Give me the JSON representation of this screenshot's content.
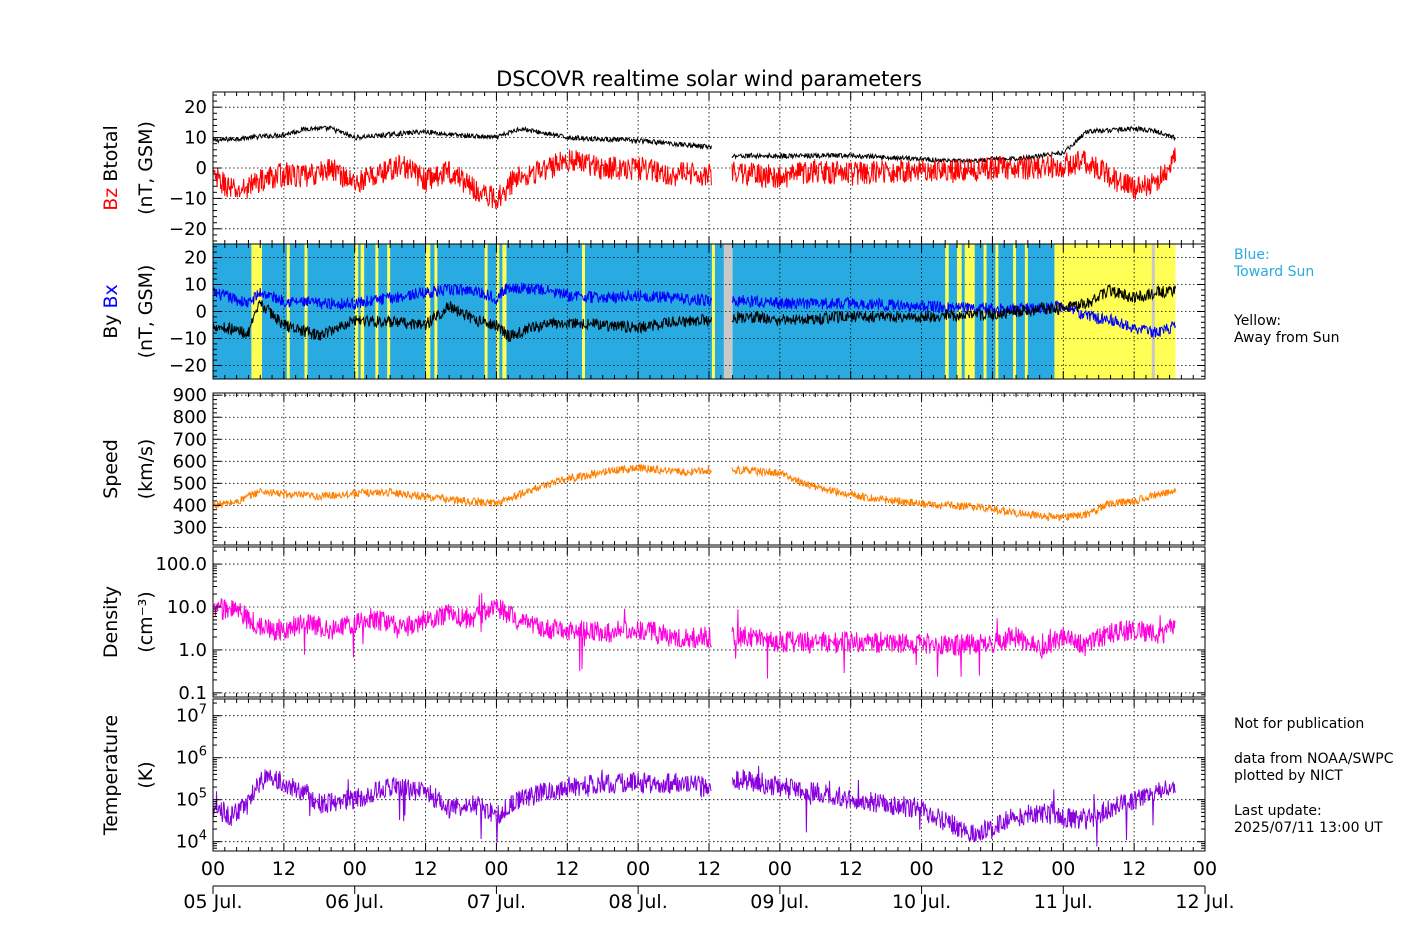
{
  "chart_data": {
    "type": "line",
    "title": "DSCOVR realtime solar wind parameters",
    "x_axis": {
      "range": [
        "2025-07-05 00:00",
        "2025-07-12 00:00"
      ],
      "hour_ticks": [
        "00",
        "12",
        "00",
        "12",
        "00",
        "12",
        "00",
        "12",
        "00",
        "12",
        "00",
        "12",
        "00",
        "12",
        "00"
      ],
      "day_labels": [
        "05 Jul.",
        "06 Jul.",
        "07 Jul.",
        "08 Jul.",
        "09 Jul.",
        "10 Jul.",
        "11 Jul.",
        "12 Jul."
      ]
    },
    "panels": [
      {
        "id": "btotal_bz",
        "ylabel_lines": [
          "Btotal",
          "(nT, GSM)"
        ],
        "ylabel_colored": "Bz",
        "ylim": [
          -25,
          25
        ],
        "yticks": [
          20,
          10,
          0,
          -10,
          -20
        ],
        "ytick_labels": [
          "20",
          "10",
          "0",
          "−10",
          "−20"
        ],
        "grid": true,
        "series": [
          {
            "name": "Btotal",
            "color": "#000000",
            "x_hours": [
              0,
              6,
              12,
              16,
              20,
              24,
              30,
              36,
              40,
              48,
              52,
              60,
              72,
              84,
              86,
              88,
              96,
              108,
              120,
              128,
              132,
              136,
              140,
              144,
              148,
              156,
              160,
              163
            ],
            "y": [
              9,
              10,
              11,
              13,
              13,
              10,
              11,
              12,
              11,
              10,
              13,
              10,
              9,
              7,
              6,
              4,
              4,
              4,
              3,
              2,
              3,
              3,
              4,
              5,
              12,
              13,
              12,
              10
            ]
          },
          {
            "name": "Bz",
            "color": "#ff0000",
            "x_hours": [
              0,
              4,
              8,
              12,
              16,
              20,
              24,
              28,
              32,
              36,
              40,
              46,
              48,
              52,
              56,
              60,
              66,
              72,
              78,
              84,
              86,
              90,
              96,
              102,
              108,
              114,
              120,
              126,
              132,
              138,
              144,
              148,
              152,
              156,
              160,
              163
            ],
            "y": [
              -3,
              -8,
              -4,
              -2,
              -3,
              0,
              -5,
              -2,
              1,
              -4,
              -1,
              -9,
              -10,
              -2,
              -1,
              3,
              0,
              0,
              -2,
              -2,
              -1,
              -2,
              -3,
              -1,
              -2,
              -1,
              -1,
              -1,
              0,
              0,
              1,
              2,
              -3,
              -7,
              -4,
              3
            ]
          }
        ]
      },
      {
        "id": "bx_by",
        "ylabel_lines": [
          "By",
          "(nT, GSM)"
        ],
        "ylabel_colored": "Bx",
        "ylim": [
          -25,
          25
        ],
        "yticks": [
          20,
          10,
          0,
          -10,
          -20
        ],
        "ytick_labels": [
          "20",
          "10",
          "0",
          "−10",
          "−20"
        ],
        "grid": true,
        "sector_colors": {
          "toward": "#29abe2",
          "away": "#ffff55",
          "gap": "#c8c8c8"
        },
        "away_bands_hours": [
          [
            6.5,
            8.3
          ],
          [
            12.5,
            13
          ],
          [
            15.5,
            16
          ],
          [
            24,
            24.6
          ],
          [
            25,
            25.6
          ],
          [
            27.5,
            28
          ],
          [
            29.5,
            30
          ],
          [
            36,
            36.8
          ],
          [
            37.5,
            38
          ],
          [
            46,
            46.5
          ],
          [
            48,
            48.5
          ],
          [
            49,
            49.7
          ],
          [
            62.5,
            63
          ],
          [
            84.5,
            85
          ],
          [
            124,
            124.6
          ],
          [
            126,
            126.8
          ],
          [
            127.3,
            129
          ],
          [
            130.5,
            131
          ],
          [
            132.5,
            133
          ],
          [
            135.5,
            136
          ],
          [
            137.5,
            138
          ],
          [
            142.5,
            163
          ]
        ],
        "gap_bands_hours": [
          [
            86.5,
            88
          ],
          [
            159,
            159.5
          ]
        ],
        "series": [
          {
            "name": "Bx",
            "color": "#0000ff",
            "x_hours": [
              0,
              6,
              8,
              12,
              18,
              24,
              30,
              36,
              40,
              44,
              48,
              50,
              56,
              60,
              66,
              72,
              78,
              84,
              86,
              90,
              96,
              108,
              120,
              132,
              140,
              144,
              148,
              152,
              156,
              160,
              163
            ],
            "y": [
              7,
              3,
              7,
              4,
              3,
              3,
              5,
              7,
              8,
              8,
              5,
              9,
              8,
              6,
              5,
              6,
              5,
              4,
              4,
              4,
              3,
              3,
              2,
              1,
              1,
              2,
              -2,
              -3,
              -6,
              -8,
              -5
            ]
          },
          {
            "name": "By",
            "color": "#000000",
            "x_hours": [
              0,
              6,
              8,
              12,
              18,
              24,
              30,
              36,
              40,
              44,
              48,
              50,
              56,
              60,
              66,
              72,
              78,
              84,
              86,
              90,
              96,
              108,
              120,
              132,
              140,
              144,
              148,
              152,
              156,
              160,
              163
            ],
            "y": [
              -5,
              -8,
              3,
              -5,
              -9,
              -3,
              -4,
              -5,
              2,
              -3,
              -5,
              -9,
              -5,
              -4,
              -5,
              -6,
              -4,
              -3,
              -3,
              -2,
              -3,
              -2,
              -2,
              -1,
              1,
              1,
              3,
              8,
              5,
              7,
              8
            ]
          }
        ]
      },
      {
        "id": "speed",
        "ylabel_lines": [
          "Speed",
          "(km/s)"
        ],
        "ylim": [
          220,
          910
        ],
        "yticks": [
          900,
          800,
          700,
          600,
          500,
          400,
          300
        ],
        "ytick_labels": [
          "900",
          "800",
          "700",
          "600",
          "500",
          "400",
          "300"
        ],
        "grid": true,
        "series": [
          {
            "name": "Speed",
            "color": "#ff8000",
            "x_hours": [
              0,
              4,
              8,
              12,
              18,
              24,
              30,
              36,
              42,
              48,
              52,
              56,
              60,
              64,
              68,
              72,
              76,
              80,
              84,
              90,
              96,
              100,
              104,
              108,
              112,
              116,
              120,
              124,
              128,
              132,
              136,
              140,
              144,
              148,
              152,
              156,
              160,
              163
            ],
            "y": [
              400,
              415,
              465,
              450,
              440,
              455,
              460,
              440,
              420,
              410,
              450,
              490,
              520,
              540,
              560,
              570,
              560,
              550,
              560,
              560,
              545,
              500,
              470,
              450,
              430,
              420,
              405,
              400,
              395,
              385,
              365,
              350,
              345,
              360,
              410,
              420,
              450,
              470
            ]
          }
        ]
      },
      {
        "id": "density",
        "ylabel_lines": [
          "Density",
          "(cm⁻³)"
        ],
        "ylog": true,
        "ylim": [
          0.08,
          250
        ],
        "yticks": [
          100,
          10,
          1,
          0.1
        ],
        "ytick_labels": [
          "100.0",
          "10.0",
          "1.0",
          "0.1"
        ],
        "grid": true,
        "series": [
          {
            "name": "Density",
            "color": "#ff00dd",
            "x_hours": [
              0,
              3,
              6,
              9,
              12,
              16,
              20,
              24,
              28,
              32,
              36,
              40,
              44,
              48,
              52,
              56,
              60,
              66,
              72,
              78,
              84,
              90,
              96,
              102,
              108,
              114,
              120,
              126,
              132,
              136,
              140,
              144,
              148,
              152,
              156,
              160,
              163
            ],
            "y": [
              8,
              10,
              5,
              3,
              3,
              4,
              3,
              4,
              5,
              3,
              5,
              7,
              5,
              10,
              4,
              3,
              3,
              2.5,
              3,
              2,
              2,
              2,
              1.5,
              1.5,
              1.5,
              1.5,
              1.4,
              1.3,
              1.5,
              2,
              1,
              2,
              1.2,
              2.5,
              3,
              2,
              3.5
            ]
          }
        ]
      },
      {
        "id": "temperature",
        "ylabel_lines": [
          "Temperature",
          "(K)"
        ],
        "ylog": true,
        "ylim": [
          6000,
          25000000
        ],
        "yticks": [
          10000000,
          1000000,
          100000,
          10000
        ],
        "ytick_labels": [
          "10^7",
          "10^6",
          "10^5",
          "10^4"
        ],
        "grid": true,
        "series": [
          {
            "name": "Temperature",
            "color": "#8800dd",
            "x_hours": [
              0,
              3,
              6,
              9,
              12,
              18,
              24,
              30,
              36,
              40,
              44,
              48,
              52,
              56,
              60,
              66,
              72,
              78,
              84,
              90,
              96,
              102,
              108,
              114,
              120,
              124,
              128,
              132,
              136,
              140,
              144,
              148,
              152,
              156,
              160,
              163
            ],
            "y": [
              60000,
              40000,
              80000,
              350000,
              250000,
              80000,
              100000,
              200000,
              150000,
              60000,
              80000,
              40000,
              100000,
              150000,
              200000,
              250000,
              250000,
              250000,
              200000,
              300000,
              200000,
              150000,
              100000,
              80000,
              60000,
              30000,
              15000,
              20000,
              40000,
              50000,
              40000,
              30000,
              60000,
              100000,
              150000,
              180000
            ]
          }
        ]
      }
    ]
  },
  "sidebar": {
    "bx_legend_blue": "Blue:\nToward Sun",
    "bx_legend_yellow": "Yellow:\nAway from Sun",
    "notice": "Not for publication",
    "credit": "data from NOAA/SWPC\nplotted by NICT",
    "last_update": "Last update:\n2025/07/11 13:00 UT"
  },
  "colors": {
    "blue_label": "#29abe2"
  }
}
